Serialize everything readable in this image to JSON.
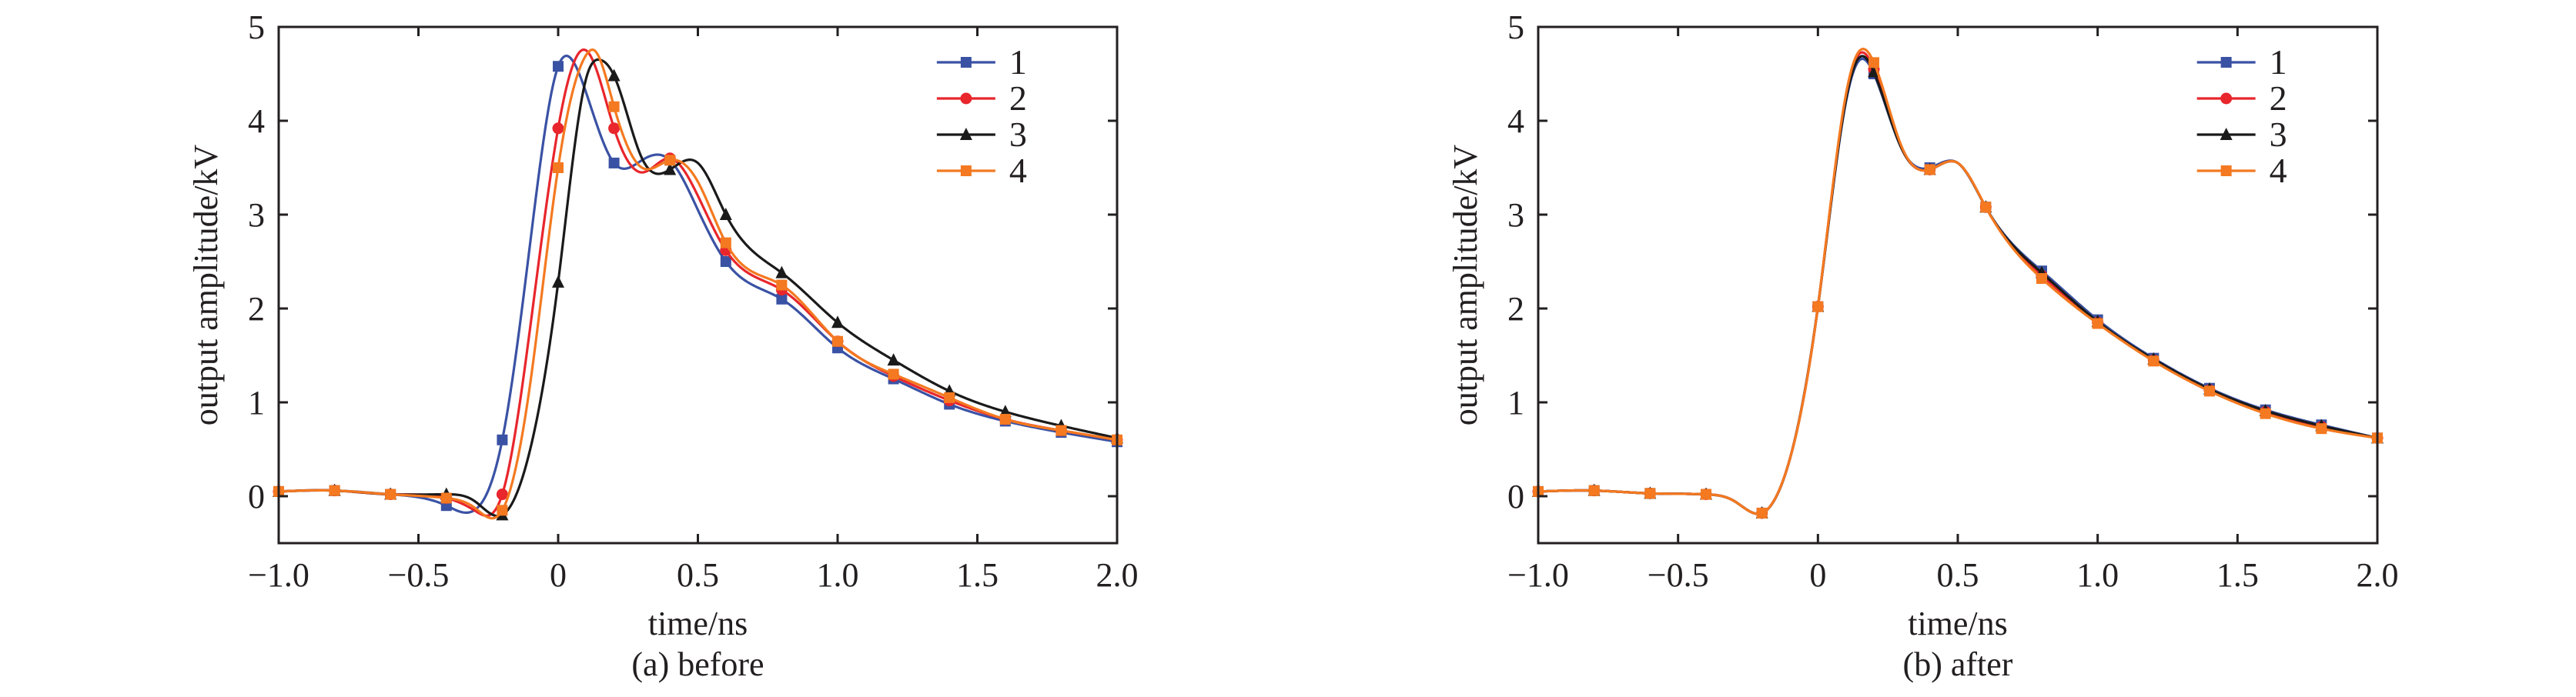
{
  "colors": {
    "series1": "#3a52a4",
    "series2": "#e8262c",
    "series3": "#1a1a1a",
    "series4": "#f47920",
    "axis": "#231f20"
  },
  "chart_data": [
    {
      "type": "line",
      "caption": "(a) before",
      "xlabel": "time/ns",
      "ylabel": "output amplitude/kV",
      "xlim": [
        -1.0,
        2.0
      ],
      "ylim": [
        -0.5,
        5
      ],
      "xticks": [
        "−1.0",
        "−0.5",
        "0",
        "0.5",
        "1.0",
        "1.5",
        "2.0"
      ],
      "yticks": [
        "0",
        "1",
        "2",
        "3",
        "4",
        "5"
      ],
      "legend_position": "top-right",
      "series": [
        {
          "name": "1",
          "color": "#3a52a4",
          "marker": "square",
          "x": [
            -1.0,
            -0.8,
            -0.6,
            -0.4,
            -0.3,
            -0.2,
            -0.1,
            0.0,
            0.04,
            0.1,
            0.2,
            0.3,
            0.4,
            0.5,
            0.6,
            0.8,
            1.0,
            1.2,
            1.4,
            1.6,
            1.8,
            2.0
          ],
          "y": [
            0.05,
            0.06,
            0.02,
            -0.1,
            -0.15,
            0.6,
            2.7,
            4.58,
            4.68,
            4.3,
            3.55,
            3.58,
            3.58,
            3.05,
            2.5,
            2.1,
            1.58,
            1.25,
            0.98,
            0.8,
            0.68,
            0.58
          ],
          "marker_x": [
            -1.0,
            -0.8,
            -0.6,
            -0.4,
            -0.2,
            0.0,
            0.2,
            0.4,
            0.6,
            0.8,
            1.0,
            1.2,
            1.4,
            1.6,
            1.8,
            2.0
          ]
        },
        {
          "name": "2",
          "color": "#e8262c",
          "marker": "circle",
          "x": [
            -1.0,
            -0.8,
            -0.6,
            -0.4,
            -0.3,
            -0.2,
            -0.1,
            0.0,
            0.1,
            0.2,
            0.3,
            0.4,
            0.5,
            0.6,
            0.8,
            1.0,
            1.2,
            1.4,
            1.6,
            1.8,
            2.0
          ],
          "y": [
            0.05,
            0.06,
            0.02,
            -0.02,
            -0.15,
            0.02,
            1.8,
            3.92,
            4.75,
            3.92,
            3.45,
            3.6,
            3.2,
            2.62,
            2.2,
            1.65,
            1.28,
            1.02,
            0.82,
            0.7,
            0.6
          ],
          "marker_x": [
            -1.0,
            -0.8,
            -0.6,
            -0.4,
            -0.2,
            0.0,
            0.2,
            0.4,
            0.6,
            0.8,
            1.0,
            1.2,
            1.4,
            1.6,
            1.8,
            2.0
          ]
        },
        {
          "name": "3",
          "color": "#1a1a1a",
          "marker": "triangle",
          "x": [
            -1.0,
            -0.8,
            -0.6,
            -0.4,
            -0.3,
            -0.2,
            -0.1,
            0.0,
            0.1,
            0.15,
            0.2,
            0.3,
            0.4,
            0.5,
            0.6,
            0.8,
            1.0,
            1.2,
            1.4,
            1.6,
            1.8,
            2.0
          ],
          "y": [
            0.05,
            0.06,
            0.02,
            0.02,
            -0.05,
            -0.2,
            0.5,
            2.28,
            4.45,
            4.65,
            4.48,
            3.6,
            3.48,
            3.55,
            3.0,
            2.38,
            1.85,
            1.45,
            1.12,
            0.9,
            0.75,
            0.62
          ],
          "marker_x": [
            -1.0,
            -0.8,
            -0.6,
            -0.4,
            -0.2,
            0.0,
            0.2,
            0.4,
            0.6,
            0.8,
            1.0,
            1.2,
            1.4,
            1.6,
            1.8,
            2.0
          ]
        },
        {
          "name": "4",
          "color": "#f47920",
          "marker": "square",
          "x": [
            -1.0,
            -0.8,
            -0.6,
            -0.4,
            -0.3,
            -0.2,
            -0.1,
            0.0,
            0.1,
            0.13,
            0.2,
            0.3,
            0.4,
            0.5,
            0.6,
            0.8,
            1.0,
            1.2,
            1.4,
            1.6,
            1.8,
            2.0
          ],
          "y": [
            0.05,
            0.06,
            0.02,
            -0.02,
            -0.12,
            -0.15,
            1.2,
            3.5,
            4.7,
            4.75,
            4.15,
            3.5,
            3.58,
            3.35,
            2.7,
            2.25,
            1.65,
            1.3,
            1.05,
            0.82,
            0.7,
            0.6
          ],
          "marker_x": [
            -1.0,
            -0.8,
            -0.6,
            -0.4,
            -0.2,
            0.0,
            0.2,
            0.4,
            0.6,
            0.8,
            1.0,
            1.2,
            1.4,
            1.6,
            1.8,
            2.0
          ]
        }
      ]
    },
    {
      "type": "line",
      "caption": "(b) after",
      "xlabel": "time/ns",
      "ylabel": "output amplitude/kV",
      "xlim": [
        -1.0,
        2.0
      ],
      "ylim": [
        -0.5,
        5
      ],
      "xticks": [
        "−1.0",
        "−0.5",
        "0",
        "0.5",
        "1.0",
        "1.5",
        "2.0"
      ],
      "yticks": [
        "0",
        "1",
        "2",
        "3",
        "4",
        "5"
      ],
      "legend_position": "top-right",
      "series": [
        {
          "name": "1",
          "color": "#3a52a4",
          "marker": "square",
          "x": [
            -1.0,
            -0.8,
            -0.6,
            -0.4,
            -0.3,
            -0.2,
            -0.1,
            0.0,
            0.1,
            0.15,
            0.2,
            0.3,
            0.4,
            0.5,
            0.6,
            0.8,
            1.0,
            1.2,
            1.4,
            1.6,
            1.8,
            2.0
          ],
          "y": [
            0.05,
            0.06,
            0.03,
            0.02,
            -0.05,
            -0.18,
            0.4,
            2.02,
            4.2,
            4.65,
            4.5,
            3.7,
            3.5,
            3.55,
            3.08,
            2.4,
            1.88,
            1.47,
            1.15,
            0.92,
            0.76,
            0.62
          ],
          "marker_x": [
            -1.0,
            -0.8,
            -0.6,
            -0.4,
            -0.2,
            0.0,
            0.2,
            0.4,
            0.6,
            0.8,
            1.0,
            1.2,
            1.4,
            1.6,
            1.8,
            2.0
          ]
        },
        {
          "name": "2",
          "color": "#e8262c",
          "marker": "circle",
          "x": [
            -1.0,
            -0.8,
            -0.6,
            -0.4,
            -0.3,
            -0.2,
            -0.1,
            0.0,
            0.1,
            0.15,
            0.2,
            0.3,
            0.4,
            0.5,
            0.6,
            0.8,
            1.0,
            1.2,
            1.4,
            1.6,
            1.8,
            2.0
          ],
          "y": [
            0.05,
            0.06,
            0.03,
            0.02,
            -0.05,
            -0.18,
            0.4,
            2.02,
            4.25,
            4.72,
            4.55,
            3.7,
            3.48,
            3.55,
            3.08,
            2.35,
            1.85,
            1.45,
            1.13,
            0.9,
            0.74,
            0.62
          ],
          "marker_x": [
            -1.0,
            -0.8,
            -0.6,
            -0.4,
            -0.2,
            0.0,
            0.2,
            0.4,
            0.6,
            0.8,
            1.0,
            1.2,
            1.4,
            1.6,
            1.8,
            2.0
          ]
        },
        {
          "name": "3",
          "color": "#1a1a1a",
          "marker": "triangle",
          "x": [
            -1.0,
            -0.8,
            -0.6,
            -0.4,
            -0.3,
            -0.2,
            -0.1,
            0.0,
            0.1,
            0.15,
            0.2,
            0.3,
            0.4,
            0.5,
            0.6,
            0.8,
            1.0,
            1.2,
            1.4,
            1.6,
            1.8,
            2.0
          ],
          "y": [
            0.05,
            0.06,
            0.03,
            0.02,
            -0.05,
            -0.18,
            0.4,
            2.02,
            4.22,
            4.68,
            4.52,
            3.7,
            3.48,
            3.55,
            3.08,
            2.38,
            1.86,
            1.46,
            1.14,
            0.91,
            0.75,
            0.62
          ],
          "marker_x": [
            -1.0,
            -0.8,
            -0.6,
            -0.4,
            -0.2,
            0.0,
            0.2,
            0.4,
            0.6,
            0.8,
            1.0,
            1.2,
            1.4,
            1.6,
            1.8,
            2.0
          ]
        },
        {
          "name": "4",
          "color": "#f47920",
          "marker": "square",
          "x": [
            -1.0,
            -0.8,
            -0.6,
            -0.4,
            -0.3,
            -0.2,
            -0.1,
            0.0,
            0.1,
            0.15,
            0.2,
            0.3,
            0.4,
            0.5,
            0.6,
            0.8,
            1.0,
            1.2,
            1.4,
            1.6,
            1.8,
            2.0
          ],
          "y": [
            0.05,
            0.06,
            0.03,
            0.02,
            -0.05,
            -0.18,
            0.4,
            2.02,
            4.28,
            4.75,
            4.62,
            3.72,
            3.48,
            3.55,
            3.08,
            2.32,
            1.84,
            1.44,
            1.12,
            0.88,
            0.72,
            0.62
          ],
          "marker_x": [
            -1.0,
            -0.8,
            -0.6,
            -0.4,
            -0.2,
            0.0,
            0.2,
            0.4,
            0.6,
            0.8,
            1.0,
            1.2,
            1.4,
            1.6,
            1.8,
            2.0
          ]
        }
      ]
    }
  ]
}
